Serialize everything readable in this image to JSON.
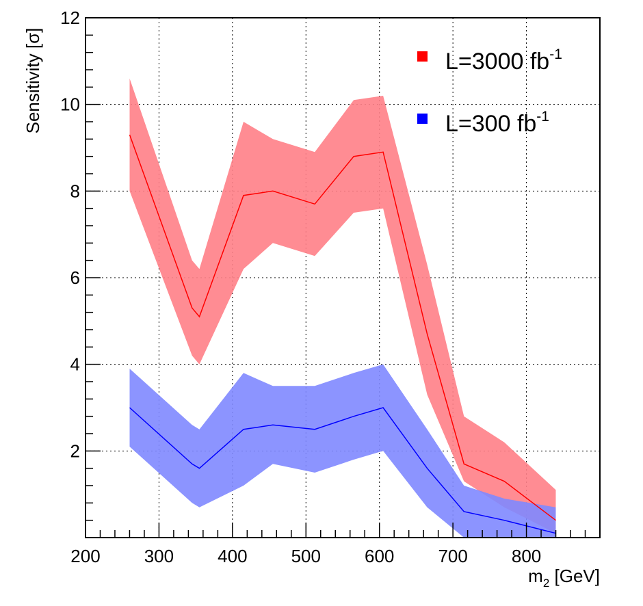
{
  "chart_data": {
    "type": "line",
    "xlabel": {
      "base": "m",
      "sub": "2",
      "rest": " [GeV]"
    },
    "ylabel": "Sensitivity [σ]",
    "xlim": [
      200,
      900
    ],
    "ylim": [
      0,
      12
    ],
    "xticks": [
      200,
      300,
      400,
      500,
      600,
      700,
      800
    ],
    "xtick_labels": [
      "200",
      "300",
      "400",
      "500",
      "600",
      "700",
      "800"
    ],
    "yticks": [
      2,
      4,
      6,
      8,
      10,
      12
    ],
    "ytick_labels": [
      "2",
      "4",
      "6",
      "8",
      "10",
      "12"
    ],
    "grid": true,
    "legend_position": "top-right",
    "x": [
      260,
      345,
      355,
      415,
      455,
      512,
      565,
      605,
      665,
      715,
      770,
      840
    ],
    "series": [
      {
        "name": "L=3000 fb-1",
        "label_main": "L=3000 fb",
        "label_sup": "-1",
        "color": "#ff0000",
        "band_color": "#ff8087",
        "values": [
          9.3,
          5.3,
          5.1,
          7.9,
          8.0,
          7.7,
          8.8,
          8.9,
          4.7,
          1.7,
          1.3,
          0.4
        ],
        "upper": [
          10.6,
          6.4,
          6.2,
          9.6,
          9.2,
          8.9,
          10.1,
          10.2,
          6.3,
          2.8,
          2.2,
          1.1
        ],
        "lower": [
          8.0,
          4.2,
          4.0,
          6.2,
          6.8,
          6.5,
          7.5,
          7.6,
          3.3,
          1.3,
          0.7,
          0.1
        ]
      },
      {
        "name": "L=300 fb-1",
        "label_main": "L=300 fb",
        "label_sup": "-1",
        "color": "#0000ff",
        "band_color": "#8088ff",
        "values": [
          3.0,
          1.7,
          1.6,
          2.5,
          2.6,
          2.5,
          2.8,
          3.0,
          1.6,
          0.6,
          0.4,
          0.1
        ],
        "upper": [
          3.9,
          2.6,
          2.5,
          3.8,
          3.5,
          3.5,
          3.8,
          4.0,
          2.5,
          1.2,
          0.9,
          0.7
        ],
        "lower": [
          2.1,
          0.8,
          0.7,
          1.2,
          1.7,
          1.5,
          1.8,
          2.0,
          0.7,
          0.0,
          0.0,
          0.0
        ]
      }
    ]
  }
}
